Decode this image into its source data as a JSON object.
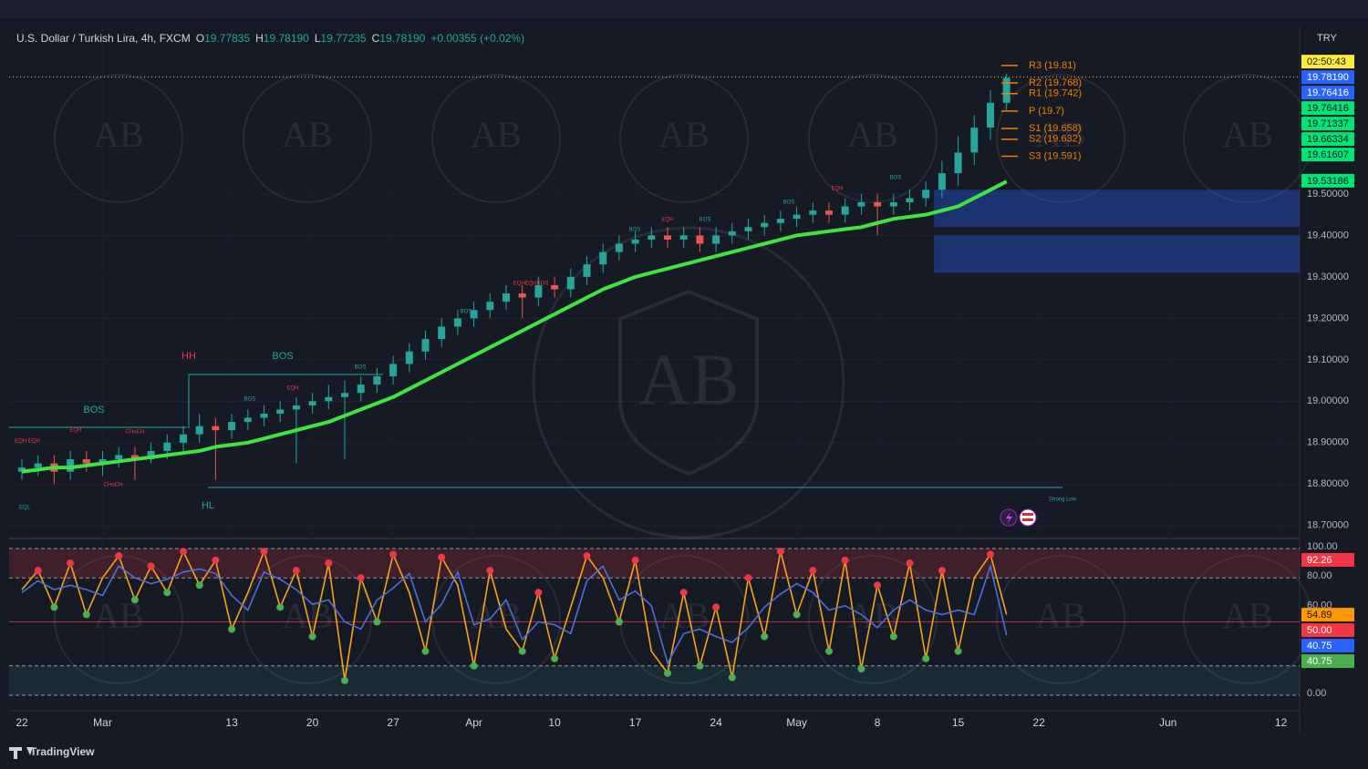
{
  "header": {
    "symbol": "U.S. Dollar / Turkish Lira, 4h, FXCM",
    "ohlc": [
      {
        "key": "O",
        "value": "19.77835"
      },
      {
        "key": "H",
        "value": "19.78190"
      },
      {
        "key": "L",
        "value": "19.77235"
      },
      {
        "key": "C",
        "value": "19.78190"
      }
    ],
    "change": "+0.00355 (+0.02%)"
  },
  "chart_data": {
    "type": "candlestick",
    "x": [
      0,
      1,
      2,
      3,
      4,
      5,
      6,
      7,
      8,
      9,
      10,
      11,
      12,
      13,
      14,
      15,
      16,
      17,
      18,
      19,
      20,
      21,
      22,
      23,
      24,
      25,
      26,
      27,
      28,
      29,
      30,
      31,
      32,
      33,
      34,
      35,
      36,
      37,
      38,
      39,
      40,
      41,
      42,
      43,
      44,
      45,
      46,
      47,
      48,
      49,
      50,
      51,
      52,
      53,
      54,
      55,
      56,
      57,
      58,
      59,
      60,
      61
    ],
    "candles": [
      [
        18.83,
        18.86,
        18.81,
        18.84
      ],
      [
        18.84,
        18.87,
        18.82,
        18.85
      ],
      [
        18.85,
        18.87,
        18.8,
        18.83
      ],
      [
        18.83,
        18.88,
        18.81,
        18.86
      ],
      [
        18.86,
        18.88,
        18.83,
        18.85
      ],
      [
        18.85,
        18.88,
        18.82,
        18.86
      ],
      [
        18.86,
        18.89,
        18.84,
        18.87
      ],
      [
        18.87,
        18.89,
        18.81,
        18.86
      ],
      [
        18.86,
        18.9,
        18.85,
        18.88
      ],
      [
        18.88,
        18.92,
        18.86,
        18.9
      ],
      [
        18.9,
        18.94,
        18.88,
        18.92
      ],
      [
        18.92,
        18.97,
        18.9,
        18.94
      ],
      [
        18.94,
        18.96,
        18.81,
        18.93
      ],
      [
        18.93,
        18.97,
        18.91,
        18.95
      ],
      [
        18.95,
        18.98,
        18.93,
        18.96
      ],
      [
        18.96,
        18.99,
        18.94,
        18.97
      ],
      [
        18.97,
        19.0,
        18.95,
        18.98
      ],
      [
        18.98,
        19.01,
        18.85,
        18.99
      ],
      [
        18.99,
        19.02,
        18.97,
        19.0
      ],
      [
        19.0,
        19.04,
        18.98,
        19.01
      ],
      [
        19.01,
        19.05,
        18.86,
        19.02
      ],
      [
        19.02,
        19.06,
        19.0,
        19.04
      ],
      [
        19.04,
        19.08,
        19.02,
        19.06
      ],
      [
        19.06,
        19.11,
        19.04,
        19.09
      ],
      [
        19.09,
        19.14,
        19.07,
        19.12
      ],
      [
        19.12,
        19.17,
        19.1,
        19.15
      ],
      [
        19.15,
        19.2,
        19.13,
        19.18
      ],
      [
        19.18,
        19.22,
        19.16,
        19.2
      ],
      [
        19.2,
        19.24,
        19.18,
        19.22
      ],
      [
        19.22,
        19.26,
        19.2,
        19.24
      ],
      [
        19.24,
        19.28,
        19.22,
        19.26
      ],
      [
        19.26,
        19.28,
        19.2,
        19.25
      ],
      [
        19.25,
        19.3,
        19.23,
        19.28
      ],
      [
        19.28,
        19.3,
        19.25,
        19.27
      ],
      [
        19.27,
        19.32,
        19.25,
        19.3
      ],
      [
        19.3,
        19.35,
        19.28,
        19.33
      ],
      [
        19.33,
        19.38,
        19.31,
        19.36
      ],
      [
        19.36,
        19.4,
        19.34,
        19.38
      ],
      [
        19.38,
        19.41,
        19.36,
        19.39
      ],
      [
        19.39,
        19.42,
        19.37,
        19.4
      ],
      [
        19.4,
        19.42,
        19.37,
        19.39
      ],
      [
        19.39,
        19.42,
        19.37,
        19.4
      ],
      [
        19.4,
        19.42,
        19.36,
        19.38
      ],
      [
        19.38,
        19.42,
        19.36,
        19.4
      ],
      [
        19.4,
        19.43,
        19.38,
        19.41
      ],
      [
        19.41,
        19.44,
        19.39,
        19.42
      ],
      [
        19.42,
        19.45,
        19.4,
        19.43
      ],
      [
        19.43,
        19.46,
        19.41,
        19.44
      ],
      [
        19.44,
        19.47,
        19.42,
        19.45
      ],
      [
        19.45,
        19.48,
        19.43,
        19.46
      ],
      [
        19.46,
        19.48,
        19.43,
        19.45
      ],
      [
        19.45,
        19.49,
        19.43,
        19.47
      ],
      [
        19.47,
        19.5,
        19.45,
        19.48
      ],
      [
        19.48,
        19.5,
        19.4,
        19.47
      ],
      [
        19.47,
        19.5,
        19.45,
        19.48
      ],
      [
        19.48,
        19.51,
        19.46,
        19.49
      ],
      [
        19.49,
        19.53,
        19.47,
        19.51
      ],
      [
        19.51,
        19.58,
        19.49,
        19.55
      ],
      [
        19.55,
        19.64,
        19.52,
        19.6
      ],
      [
        19.6,
        19.69,
        19.57,
        19.66
      ],
      [
        19.66,
        19.75,
        19.63,
        19.72
      ],
      [
        19.72,
        19.79,
        19.7,
        19.78
      ]
    ],
    "up_color": "#26a69a",
    "down_color": "#ef5350",
    "ma": {
      "color": "#3ee53e",
      "values": [
        18.83,
        18.835,
        18.84,
        18.84,
        18.845,
        18.85,
        18.855,
        18.86,
        18.865,
        18.87,
        18.875,
        18.88,
        18.89,
        18.895,
        18.9,
        18.91,
        18.92,
        18.93,
        18.94,
        18.95,
        18.965,
        18.98,
        18.995,
        19.01,
        19.03,
        19.05,
        19.07,
        19.09,
        19.11,
        19.13,
        19.15,
        19.17,
        19.19,
        19.21,
        19.23,
        19.25,
        19.27,
        19.285,
        19.3,
        19.31,
        19.32,
        19.33,
        19.34,
        19.35,
        19.36,
        19.37,
        19.38,
        19.39,
        19.4,
        19.405,
        19.41,
        19.415,
        19.42,
        19.43,
        19.44,
        19.445,
        19.45,
        19.46,
        19.47,
        19.49,
        19.51,
        19.53
      ]
    },
    "xlim": [
      -0.791,
      79.153
    ],
    "xticks": [
      {
        "value": 0,
        "label": "22"
      },
      {
        "value": 5,
        "label": "Mar"
      },
      {
        "value": 13,
        "label": "13"
      },
      {
        "value": 18,
        "label": "20"
      },
      {
        "value": 23,
        "label": "27"
      },
      {
        "value": 28,
        "label": "Apr"
      },
      {
        "value": 33,
        "label": "10"
      },
      {
        "value": 38,
        "label": "17"
      },
      {
        "value": 43,
        "label": "24"
      },
      {
        "value": 48,
        "label": "May"
      },
      {
        "value": 53,
        "label": "8"
      },
      {
        "value": 58,
        "label": "15"
      },
      {
        "value": 63,
        "label": "22"
      },
      {
        "value": 71,
        "label": "Jun"
      },
      {
        "value": 78,
        "label": "12"
      }
    ],
    "ylim": [
      18.693,
      19.902
    ],
    "yticks": [
      {
        "value": 19.5,
        "label": "19.50000"
      },
      {
        "value": 19.4,
        "label": "19.40000"
      },
      {
        "value": 19.3,
        "label": "19.30000"
      },
      {
        "value": 19.2,
        "label": "19.20000"
      },
      {
        "value": 19.1,
        "label": "19.10000"
      },
      {
        "value": 19.0,
        "label": "19.00000"
      },
      {
        "value": 18.9,
        "label": "18.90000"
      },
      {
        "value": 18.8,
        "label": "18.80000"
      },
      {
        "value": 18.7,
        "label": "18.70000"
      }
    ],
    "currency": "TRY",
    "countdown": "02:50:43",
    "current_price": 19.7819,
    "price_badges": [
      {
        "label": "19.78190",
        "value": 19.7819,
        "color": "#2962ff"
      },
      {
        "label": "19.76416",
        "value": 19.76416,
        "color": "#2962ff"
      },
      {
        "label": "19.76416",
        "value": 19.76416,
        "color": "#00e676"
      },
      {
        "label": "19.71337",
        "value": 19.71337,
        "color": "#00e676"
      },
      {
        "label": "19.66334",
        "value": 19.66334,
        "color": "#00e676"
      },
      {
        "label": "19.61607",
        "value": 19.61607,
        "color": "#00e676"
      },
      {
        "label": "19.53186",
        "value": 19.53186,
        "color": "#00e676"
      }
    ],
    "pivot_color": "#f57c00",
    "pivots": [
      {
        "label": "R3 (19.81)",
        "value": 19.81
      },
      {
        "label": "R2 (19.768)",
        "value": 19.768
      },
      {
        "label": "R1 (19.742)",
        "value": 19.742
      },
      {
        "label": "P (19.7)",
        "value": 19.7
      },
      {
        "label": "S1 (19.658)",
        "value": 19.658
      },
      {
        "label": "S2 (19.632)",
        "value": 19.632
      },
      {
        "label": "S3 (19.591)",
        "value": 19.591
      }
    ],
    "zone_color": "#2962ff",
    "zones": [
      [
        19.42,
        19.51
      ],
      [
        19.31,
        19.4
      ]
    ],
    "annotations": [
      {
        "text": "BOS",
        "color": "#26a69a"
      },
      {
        "text": "HH",
        "color": "#f23645"
      },
      {
        "text": "BOS",
        "color": "#26a69a"
      },
      {
        "text": "HL",
        "color": "#26a69a"
      },
      {
        "text": "EQH EQH",
        "color": "#f23645"
      },
      {
        "text": "EQH",
        "color": "#f23645"
      },
      {
        "text": "EQL",
        "color": "#26a69a"
      },
      {
        "text": "CHoCH",
        "color": "#f23645"
      },
      {
        "text": "CHoCH",
        "color": "#f23645"
      },
      {
        "text": "BOS",
        "color": "#26a69a"
      },
      {
        "text": "EQH",
        "color": "#f23645"
      },
      {
        "text": "BOS",
        "color": "#26a69a"
      },
      {
        "text": "EQHEQHBOS",
        "color": "#f23645"
      },
      {
        "text": "BOS",
        "color": "#26a69a"
      },
      {
        "text": "BOS",
        "color": "#26a69a"
      },
      {
        "text": "EQH",
        "color": "#f23645"
      },
      {
        "text": "BOS",
        "color": "#26a69a"
      },
      {
        "text": "BOS",
        "color": "#26a69a"
      },
      {
        "text": "EQH",
        "color": "#f23645"
      },
      {
        "text": "BOS",
        "color": "#26a69a"
      },
      {
        "text": "Strong Low",
        "color": "#26a69a"
      }
    ]
  },
  "oscillator": {
    "type": "line",
    "ylim": [
      0,
      100
    ],
    "yticks": [
      {
        "value": 100,
        "label": "100.00"
      },
      {
        "value": 80,
        "label": "80.00"
      },
      {
        "value": 60,
        "label": "60.00"
      },
      {
        "value": 20,
        "label": "20.00"
      },
      {
        "value": 0,
        "label": "0.00"
      }
    ],
    "levels": [
      100,
      80,
      20,
      0
    ],
    "midline": 50,
    "series": [
      {
        "color": "#f7a21b",
        "values": [
          72,
          85,
          60,
          90,
          55,
          80,
          95,
          65,
          88,
          70,
          98,
          75,
          92,
          45,
          70,
          98,
          60,
          85,
          40,
          90,
          10,
          80,
          50,
          96,
          70,
          30,
          94,
          75,
          20,
          85,
          45,
          30,
          70,
          25,
          60,
          95,
          80,
          50,
          92,
          30,
          15,
          70,
          20,
          60,
          12,
          80,
          40,
          98,
          55,
          85,
          30,
          92,
          18,
          75,
          40,
          90,
          25,
          85,
          30,
          80,
          96,
          55
        ]
      },
      {
        "color": "#4a6fd8",
        "values": [
          70,
          78,
          72,
          75,
          72,
          68,
          88,
          80,
          76,
          79,
          84,
          86,
          83,
          68,
          58,
          84,
          79,
          72,
          62,
          65,
          50,
          45,
          65,
          73,
          83,
          50,
          62,
          84,
          48,
          52,
          65,
          38,
          50,
          48,
          42,
          78,
          88,
          65,
          71,
          61,
          22,
          42,
          45,
          40,
          36,
          46,
          60,
          69,
          76,
          70,
          58,
          61,
          55,
          46,
          58,
          65,
          58,
          55,
          58,
          55,
          88,
          41
        ]
      }
    ],
    "badges": [
      {
        "label": "92.26",
        "value": 92.26,
        "color": "#f23645"
      },
      {
        "label": "54.89",
        "value": 54.89,
        "color": "#ff9800"
      },
      {
        "label": "50.00",
        "value": 50,
        "color": "#f23645"
      },
      {
        "label": "40.75",
        "value": 40.75,
        "color": "#2962ff"
      },
      {
        "label": "40.75",
        "value": 40.75,
        "color": "#4caf50"
      }
    ]
  },
  "watermark": "AB",
  "footer": "TradingView"
}
